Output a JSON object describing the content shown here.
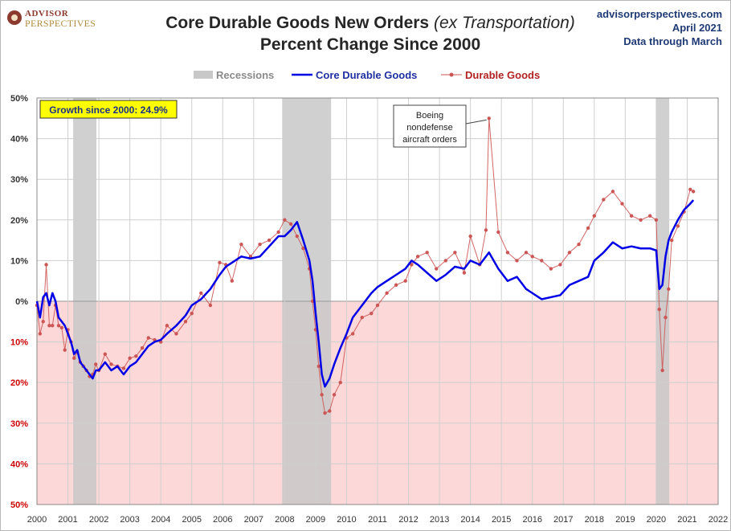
{
  "logo": {
    "line1": "ADVISOR",
    "line2": "PERSPECTIVES"
  },
  "title": {
    "main": "Core Durable Goods New Orders",
    "italic": "(ex Transportation)",
    "line2": "Percent Change Since 2000"
  },
  "corner": {
    "site": "advisorperspectives.com",
    "date": "April 2021",
    "note": "Data through March"
  },
  "legend": {
    "recessions": "Recessions",
    "core": "Core Durable Goods",
    "durable": "Durable Goods"
  },
  "annotations": {
    "growth_box": "Growth since 2000:  24.9%",
    "boeing": [
      "Boeing",
      "nondefense",
      "aircraft orders"
    ]
  },
  "colors": {
    "core": "#0000e6",
    "durable": "#cc5555",
    "recession": "#c8c8c8",
    "negative_zone": "#fcd8d8",
    "growth_box": "#ffff00"
  },
  "chart_data": {
    "type": "line",
    "title": "Core Durable Goods New Orders (ex Transportation) Percent Change Since 2000",
    "ylim": [
      -50,
      50
    ],
    "xlim": [
      2000,
      2022
    ],
    "y_ticks": [
      50,
      40,
      30,
      20,
      10,
      0,
      -10,
      -20,
      -30,
      -40,
      -50
    ],
    "y_tick_labels": [
      "50%",
      "40%",
      "30%",
      "20%",
      "10%",
      "0%",
      "10%",
      "20%",
      "30%",
      "40%",
      "50%"
    ],
    "x_ticks": [
      "2000",
      "2001",
      "2002",
      "2003",
      "2004",
      "2005",
      "2006",
      "2007",
      "2008",
      "2009",
      "2010",
      "2011",
      "2012",
      "2013",
      "2014",
      "2015",
      "2016",
      "2017",
      "2018",
      "2019",
      "2020",
      "2021",
      "2022"
    ],
    "recessions": [
      [
        2001.17,
        2001.92
      ],
      [
        2007.92,
        2009.5
      ],
      [
        2020.0,
        2020.42
      ]
    ],
    "grid": true,
    "legend_position": "top-center",
    "series": [
      {
        "name": "Core Durable Goods",
        "x": [
          2000.0,
          2000.1,
          2000.2,
          2000.3,
          2000.4,
          2000.5,
          2000.6,
          2000.7,
          2000.8,
          2000.9,
          2001.0,
          2001.1,
          2001.2,
          2001.3,
          2001.4,
          2001.5,
          2001.6,
          2001.7,
          2001.8,
          2001.9,
          2002.0,
          2002.2,
          2002.4,
          2002.6,
          2002.8,
          2003.0,
          2003.2,
          2003.4,
          2003.6,
          2003.8,
          2004.0,
          2004.2,
          2004.5,
          2004.8,
          2005.0,
          2005.3,
          2005.6,
          2005.9,
          2006.1,
          2006.3,
          2006.6,
          2006.9,
          2007.2,
          2007.5,
          2007.8,
          2008.0,
          2008.2,
          2008.4,
          2008.6,
          2008.8,
          2008.9,
          2009.0,
          2009.1,
          2009.2,
          2009.3,
          2009.45,
          2009.6,
          2009.8,
          2010.0,
          2010.2,
          2010.5,
          2010.8,
          2011.0,
          2011.3,
          2011.6,
          2011.9,
          2012.1,
          2012.3,
          2012.6,
          2012.9,
          2013.2,
          2013.5,
          2013.8,
          2014.0,
          2014.3,
          2014.6,
          2014.9,
          2015.2,
          2015.5,
          2015.8,
          2016.0,
          2016.3,
          2016.6,
          2016.9,
          2017.2,
          2017.5,
          2017.8,
          2018.0,
          2018.3,
          2018.6,
          2018.9,
          2019.2,
          2019.5,
          2019.8,
          2020.0,
          2020.1,
          2020.2,
          2020.3,
          2020.4,
          2020.5,
          2020.7,
          2020.9,
          2021.1,
          2021.2
        ],
        "values": [
          0.0,
          -4.0,
          1.0,
          2.0,
          -1.0,
          2.0,
          0.0,
          -4.0,
          -5.0,
          -6.0,
          -8.0,
          -10.0,
          -13.0,
          -12.0,
          -15.0,
          -16.0,
          -17.0,
          -18.0,
          -19.0,
          -17.0,
          -17.0,
          -15.0,
          -17.0,
          -16.0,
          -18.0,
          -16.0,
          -15.0,
          -13.0,
          -11.0,
          -10.0,
          -9.5,
          -8.0,
          -6.0,
          -3.5,
          -1.0,
          0.5,
          3.0,
          6.5,
          8.5,
          9.5,
          11.0,
          10.5,
          11.0,
          13.5,
          16.0,
          16.0,
          17.5,
          19.5,
          15.0,
          10.0,
          5.0,
          -3.0,
          -10.0,
          -18.0,
          -21.0,
          -19.0,
          -15.5,
          -11.5,
          -8.0,
          -4.0,
          -1.0,
          2.0,
          3.5,
          5.0,
          6.5,
          8.0,
          10.0,
          9.0,
          7.0,
          5.0,
          6.5,
          8.5,
          8.0,
          10.0,
          9.0,
          12.0,
          8.0,
          5.0,
          6.0,
          3.0,
          2.0,
          0.5,
          1.0,
          1.5,
          4.0,
          5.0,
          6.0,
          10.0,
          12.0,
          14.5,
          13.0,
          13.5,
          13.0,
          13.0,
          12.5,
          3.0,
          4.0,
          11.0,
          15.0,
          17.0,
          20.0,
          22.5,
          24.0,
          24.9
        ]
      },
      {
        "name": "Durable Goods",
        "x": [
          2000.0,
          2000.1,
          2000.2,
          2000.3,
          2000.4,
          2000.5,
          2000.6,
          2000.7,
          2000.8,
          2000.9,
          2001.0,
          2001.1,
          2001.2,
          2001.3,
          2001.4,
          2001.5,
          2001.6,
          2001.7,
          2001.8,
          2001.9,
          2002.0,
          2002.2,
          2002.4,
          2002.6,
          2002.8,
          2003.0,
          2003.2,
          2003.4,
          2003.6,
          2003.8,
          2004.0,
          2004.2,
          2004.5,
          2004.8,
          2005.0,
          2005.3,
          2005.6,
          2005.9,
          2006.1,
          2006.3,
          2006.6,
          2006.9,
          2007.2,
          2007.5,
          2007.8,
          2008.0,
          2008.2,
          2008.4,
          2008.6,
          2008.8,
          2008.9,
          2009.0,
          2009.1,
          2009.2,
          2009.3,
          2009.45,
          2009.6,
          2009.8,
          2010.0,
          2010.2,
          2010.5,
          2010.8,
          2011.0,
          2011.3,
          2011.6,
          2011.9,
          2012.1,
          2012.3,
          2012.6,
          2012.9,
          2013.2,
          2013.5,
          2013.8,
          2014.0,
          2014.3,
          2014.5,
          2014.6,
          2014.9,
          2015.2,
          2015.5,
          2015.8,
          2016.0,
          2016.3,
          2016.6,
          2016.9,
          2017.2,
          2017.5,
          2017.8,
          2018.0,
          2018.3,
          2018.6,
          2018.9,
          2019.2,
          2019.5,
          2019.8,
          2020.0,
          2020.1,
          2020.2,
          2020.3,
          2020.4,
          2020.5,
          2020.7,
          2020.9,
          2021.1,
          2021.2
        ],
        "values": [
          -1.0,
          -8.0,
          -5.0,
          9.0,
          -6.0,
          -6.0,
          -1.0,
          -6.0,
          -6.5,
          -12.0,
          -7.0,
          -10.0,
          -14.0,
          -12.5,
          -15.0,
          -16.0,
          -17.0,
          -18.5,
          -18.0,
          -15.5,
          -17.0,
          -13.0,
          -15.5,
          -16.0,
          -16.5,
          -14.0,
          -13.5,
          -11.5,
          -9.0,
          -9.5,
          -10.0,
          -6.0,
          -8.0,
          -5.0,
          -3.0,
          2.0,
          -1.0,
          9.5,
          9.0,
          5.0,
          14.0,
          11.0,
          14.0,
          15.0,
          17.0,
          20.0,
          19.0,
          16.0,
          13.0,
          8.0,
          0.0,
          -7.0,
          -16.0,
          -23.0,
          -27.5,
          -27.0,
          -23.0,
          -20.0,
          -9.0,
          -8.0,
          -4.0,
          -3.0,
          -1.0,
          2.0,
          4.0,
          5.0,
          9.0,
          11.0,
          12.0,
          8.0,
          10.0,
          12.0,
          7.0,
          16.0,
          9.0,
          17.5,
          45.0,
          17.0,
          12.0,
          10.0,
          12.0,
          11.0,
          10.0,
          8.0,
          9.0,
          12.0,
          14.0,
          18.0,
          21.0,
          25.0,
          27.0,
          24.0,
          21.0,
          20.0,
          21.0,
          20.0,
          -2.0,
          -17.0,
          -4.0,
          3.0,
          15.0,
          18.5,
          22.0,
          27.5,
          27.0
        ]
      }
    ]
  }
}
